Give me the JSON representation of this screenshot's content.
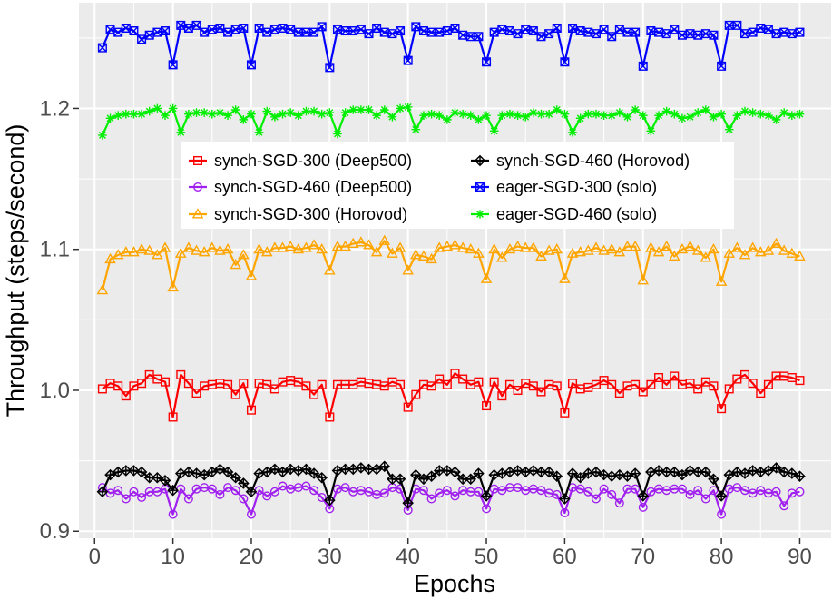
{
  "chart_data": {
    "type": "line",
    "xlabel": "Epochs",
    "ylabel": "Throughput (steps/second)",
    "xlim": [
      -2,
      94
    ],
    "ylim": [
      0.895,
      1.275
    ],
    "xticks": [
      0,
      10,
      20,
      30,
      40,
      50,
      60,
      70,
      80,
      90
    ],
    "yticks": [
      0.9,
      1.0,
      1.1,
      1.2
    ],
    "ytick_labels": [
      "0.9",
      "1.0",
      "1.1",
      "1.2"
    ],
    "grid": true,
    "legend_position": "center-left",
    "series": [
      {
        "name": "synch-SGD-300 (Deep500)",
        "color": "#ff0000",
        "marker": "square-open",
        "values": [
          1.001,
          1.005,
          1.003,
          0.996,
          1.003,
          1.005,
          1.011,
          1.008,
          1.006,
          0.981,
          1.011,
          1.005,
          0.998,
          1.003,
          1.004,
          1.005,
          1.004,
          0.997,
          1.005,
          0.986,
          1.005,
          1.004,
          1.001,
          1.006,
          1.007,
          1.006,
          1.003,
          0.997,
          1.004,
          0.981,
          1.004,
          1.004,
          1.004,
          1.006,
          1.005,
          1.004,
          1.003,
          1.006,
          1.004,
          0.988,
          0.997,
          1.004,
          1.003,
          1.008,
          1.004,
          1.012,
          1.008,
          1.004,
          1.006,
          0.989,
          1.006,
          0.996,
          1.004,
          1.0,
          1.005,
          1.003,
          0.999,
          1.004,
          1.003,
          0.984,
          1.005,
          1.001,
          1.002,
          1.004,
          1.007,
          1.004,
          0.998,
          1.003,
          1.004,
          0.999,
          1.004,
          1.009,
          1.004,
          1.01,
          1.004,
          1.005,
          1.001,
          1.006,
          1.003,
          0.987,
          1.001,
          1.008,
          1.011,
          1.005,
          0.998,
          1.004,
          1.01,
          1.01,
          1.009,
          1.007
        ]
      },
      {
        "name": "synch-SGD-460 (Deep500)",
        "color": "#a020f0",
        "marker": "circle-open",
        "values": [
          0.931,
          0.927,
          0.929,
          0.923,
          0.928,
          0.924,
          0.928,
          0.928,
          0.93,
          0.912,
          0.93,
          0.923,
          0.93,
          0.931,
          0.93,
          0.926,
          0.931,
          0.929,
          0.923,
          0.912,
          0.929,
          0.925,
          0.928,
          0.932,
          0.93,
          0.931,
          0.932,
          0.929,
          0.924,
          0.916,
          0.93,
          0.931,
          0.928,
          0.929,
          0.928,
          0.926,
          0.927,
          0.931,
          0.93,
          0.915,
          0.93,
          0.929,
          0.923,
          0.927,
          0.929,
          0.925,
          0.929,
          0.928,
          0.928,
          0.916,
          0.93,
          0.929,
          0.931,
          0.931,
          0.929,
          0.93,
          0.929,
          0.927,
          0.926,
          0.913,
          0.931,
          0.93,
          0.928,
          0.923,
          0.93,
          0.926,
          0.92,
          0.93,
          0.93,
          0.917,
          0.928,
          0.93,
          0.929,
          0.93,
          0.93,
          0.926,
          0.929,
          0.923,
          0.929,
          0.912,
          0.93,
          0.931,
          0.929,
          0.927,
          0.929,
          0.927,
          0.928,
          0.918,
          0.927,
          0.928
        ]
      },
      {
        "name": "synch-SGD-300 (Horovod)",
        "color": "#ffa500",
        "marker": "triangle-open",
        "values": [
          1.071,
          1.093,
          1.096,
          1.098,
          1.098,
          1.1,
          1.099,
          1.096,
          1.101,
          1.073,
          1.097,
          1.101,
          1.099,
          1.098,
          1.101,
          1.099,
          1.1,
          1.089,
          1.096,
          1.081,
          1.1,
          1.098,
          1.101,
          1.101,
          1.102,
          1.1,
          1.101,
          1.103,
          1.1,
          1.085,
          1.102,
          1.102,
          1.104,
          1.105,
          1.103,
          1.098,
          1.106,
          1.097,
          1.101,
          1.085,
          1.096,
          1.095,
          1.093,
          1.101,
          1.102,
          1.103,
          1.101,
          1.1,
          1.097,
          1.079,
          1.1,
          1.094,
          1.1,
          1.102,
          1.101,
          1.101,
          1.095,
          1.099,
          1.1,
          1.079,
          1.097,
          1.098,
          1.099,
          1.101,
          1.099,
          1.1,
          1.098,
          1.102,
          1.102,
          1.078,
          1.101,
          1.098,
          1.102,
          1.095,
          1.1,
          1.102,
          1.099,
          1.094,
          1.1,
          1.077,
          1.097,
          1.101,
          1.096,
          1.101,
          1.098,
          1.099,
          1.104,
          1.099,
          1.097,
          1.095
        ]
      },
      {
        "name": "synch-SGD-460 (Horovod)",
        "color": "#000000",
        "marker": "diamond-cross",
        "values": [
          0.928,
          0.94,
          0.942,
          0.943,
          0.943,
          0.942,
          0.938,
          0.938,
          0.936,
          0.929,
          0.941,
          0.942,
          0.941,
          0.94,
          0.942,
          0.944,
          0.942,
          0.938,
          0.934,
          0.928,
          0.941,
          0.942,
          0.944,
          0.942,
          0.944,
          0.943,
          0.944,
          0.941,
          0.938,
          0.922,
          0.943,
          0.944,
          0.944,
          0.945,
          0.944,
          0.944,
          0.946,
          0.937,
          0.937,
          0.92,
          0.94,
          0.937,
          0.939,
          0.943,
          0.943,
          0.942,
          0.937,
          0.937,
          0.941,
          0.925,
          0.94,
          0.941,
          0.942,
          0.943,
          0.942,
          0.943,
          0.942,
          0.942,
          0.939,
          0.923,
          0.941,
          0.938,
          0.941,
          0.942,
          0.94,
          0.939,
          0.94,
          0.939,
          0.941,
          0.925,
          0.942,
          0.943,
          0.942,
          0.942,
          0.94,
          0.943,
          0.942,
          0.942,
          0.937,
          0.925,
          0.94,
          0.942,
          0.941,
          0.943,
          0.942,
          0.943,
          0.945,
          0.942,
          0.941,
          0.939
        ]
      },
      {
        "name": "eager-SGD-300 (solo)",
        "color": "#0000ff",
        "marker": "square-cross",
        "values": [
          1.243,
          1.256,
          1.254,
          1.257,
          1.255,
          1.249,
          1.252,
          1.254,
          1.255,
          1.231,
          1.259,
          1.257,
          1.259,
          1.254,
          1.256,
          1.257,
          1.254,
          1.256,
          1.257,
          1.231,
          1.257,
          1.254,
          1.256,
          1.257,
          1.256,
          1.254,
          1.254,
          1.254,
          1.258,
          1.229,
          1.256,
          1.255,
          1.255,
          1.256,
          1.253,
          1.257,
          1.254,
          1.253,
          1.255,
          1.234,
          1.258,
          1.255,
          1.254,
          1.254,
          1.255,
          1.257,
          1.252,
          1.251,
          1.251,
          1.233,
          1.254,
          1.256,
          1.255,
          1.253,
          1.256,
          1.255,
          1.251,
          1.253,
          1.257,
          1.233,
          1.257,
          1.255,
          1.254,
          1.253,
          1.256,
          1.251,
          1.256,
          1.254,
          1.254,
          1.23,
          1.255,
          1.254,
          1.253,
          1.256,
          1.252,
          1.253,
          1.252,
          1.253,
          1.252,
          1.23,
          1.259,
          1.259,
          1.253,
          1.254,
          1.257,
          1.256,
          1.253,
          1.254,
          1.253,
          1.254
        ]
      },
      {
        "name": "eager-SGD-460 (solo)",
        "color": "#00ee00",
        "marker": "star",
        "values": [
          1.181,
          1.193,
          1.195,
          1.196,
          1.196,
          1.196,
          1.198,
          1.2,
          1.195,
          1.2,
          1.183,
          1.196,
          1.197,
          1.197,
          1.196,
          1.197,
          1.195,
          1.199,
          1.192,
          1.196,
          1.183,
          1.198,
          1.194,
          1.196,
          1.197,
          1.195,
          1.198,
          1.198,
          1.196,
          1.197,
          1.182,
          1.197,
          1.199,
          1.199,
          1.199,
          1.195,
          1.199,
          1.194,
          1.2,
          1.201,
          1.185,
          1.195,
          1.196,
          1.195,
          1.192,
          1.197,
          1.196,
          1.195,
          1.192,
          1.195,
          1.184,
          1.195,
          1.196,
          1.195,
          1.194,
          1.197,
          1.196,
          1.196,
          1.199,
          1.196,
          1.183,
          1.193,
          1.196,
          1.196,
          1.195,
          1.195,
          1.197,
          1.194,
          1.199,
          1.195,
          1.184,
          1.195,
          1.198,
          1.196,
          1.193,
          1.194,
          1.197,
          1.199,
          1.194,
          1.196,
          1.185,
          1.195,
          1.198,
          1.197,
          1.196,
          1.195,
          1.192,
          1.197,
          1.195,
          1.196
        ]
      }
    ]
  }
}
